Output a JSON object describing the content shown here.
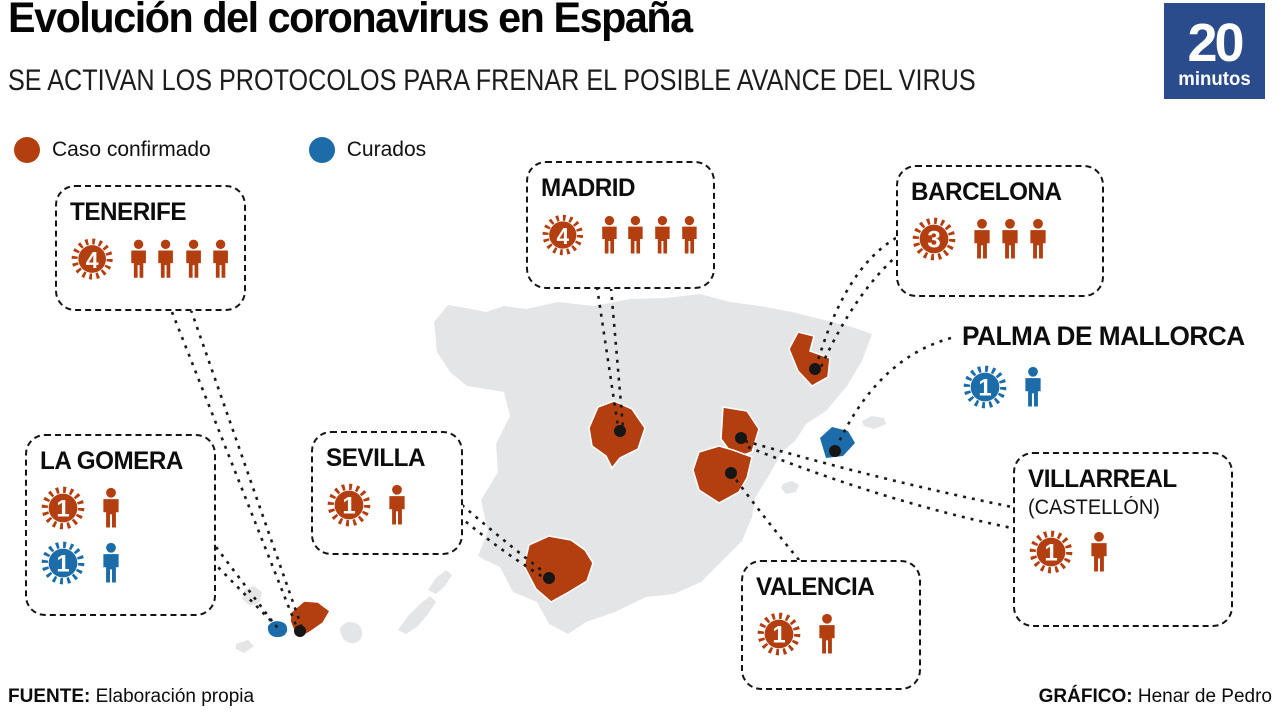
{
  "header": {
    "title": "Evolución del coronavirus en España",
    "subtitle": "SE ACTIVAN LOS PROTOCOLOS PARA FRENAR EL POSIBLE AVANCE DEL VIRUS",
    "logo": {
      "line1": "20",
      "line2": "minutos",
      "bg": "#2a4b8c"
    }
  },
  "legend": [
    {
      "label": "Caso confirmado",
      "type": "confirmed"
    },
    {
      "label": "Curados",
      "type": "cured"
    }
  ],
  "colors": {
    "confirmed": "#b33f11",
    "cured": "#1b6ca8",
    "map_base": "#e4e5e7",
    "marker_dot": "#161616"
  },
  "icons": {
    "case_icon": "virus-burst-badge",
    "person_icon": "person-pictogram"
  },
  "callouts": [
    {
      "id": "tenerife",
      "name": "TENERIFE",
      "stats": [
        {
          "type": "confirmed",
          "count": 4
        }
      ]
    },
    {
      "id": "madrid",
      "name": "MADRID",
      "stats": [
        {
          "type": "confirmed",
          "count": 4
        }
      ]
    },
    {
      "id": "barcelona",
      "name": "BARCELONA",
      "stats": [
        {
          "type": "confirmed",
          "count": 3
        }
      ]
    },
    {
      "id": "palma",
      "name": "PALMA DE MALLORCA",
      "stats": [
        {
          "type": "cured",
          "count": 1
        }
      ]
    },
    {
      "id": "la-gomera",
      "name": "LA GOMERA",
      "stats": [
        {
          "type": "confirmed",
          "count": 1
        },
        {
          "type": "cured",
          "count": 1
        }
      ]
    },
    {
      "id": "sevilla",
      "name": "SEVILLA",
      "stats": [
        {
          "type": "confirmed",
          "count": 1
        }
      ]
    },
    {
      "id": "valencia",
      "name": "VALENCIA",
      "stats": [
        {
          "type": "confirmed",
          "count": 1
        }
      ]
    },
    {
      "id": "villarreal",
      "name": "VILLARREAL",
      "subname": "(CASTELLÓN)",
      "stats": [
        {
          "type": "confirmed",
          "count": 1
        }
      ]
    }
  ],
  "footer": {
    "source_label": "FUENTE:",
    "source": "Elaboración propia",
    "credit_label": "GRÁFICO:",
    "credit": "Henar de Pedro"
  }
}
